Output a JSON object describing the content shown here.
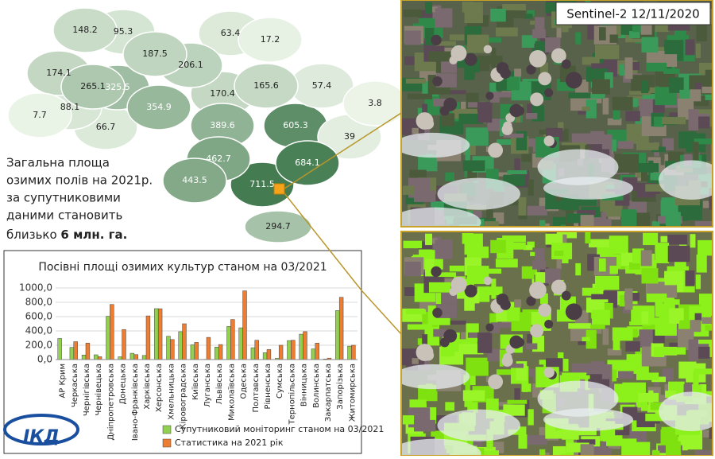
{
  "summary": {
    "lines": [
      "Загальна площа",
      "озимих полів на 2021р.",
      "за супутниковими",
      "даними становить"
    ],
    "last_line": "близько",
    "emphasis": "6 млн. га."
  },
  "image_caption": "Sentinel-2 12/11/2020",
  "logo": "ІКД",
  "chart_data": {
    "type": "bar",
    "title": "Посівні площі озимих культур станом на 03/2021",
    "categories": [
      "АР Крим",
      "Черкаська",
      "Чернігівська",
      "Чернівецька",
      "Дніпропетровська",
      "Донецька",
      "Івано-Франківська",
      "Харківська",
      "Херсонська",
      "Хмельницька",
      "Кіровоградська",
      "Київська",
      "Луганська",
      "Львівська",
      "Миколаївська",
      "Одеська",
      "Полтавська",
      "Рівненська",
      "Сумська",
      "Тернопільська",
      "Вінницька",
      "Волинська",
      "Закарпатська",
      "Запорізька",
      "Житомирська"
    ],
    "series": [
      {
        "name": "Супутниковий моніторинг станом на 03/2021",
        "color": "#92d050",
        "values": [
          294.7,
          170.4,
          63.4,
          66.7,
          605.3,
          39,
          88.1,
          57.4,
          711.5,
          325.5,
          389.6,
          206.1,
          3.8,
          174.1,
          462.7,
          443.5,
          165.6,
          95.3,
          17.2,
          265.1,
          354.9,
          148.2,
          7.7,
          684.1,
          187.5
        ]
      },
      {
        "name": "Статистика на 2021 рік",
        "color": "#ed7d31",
        "values": [
          null,
          250,
          230,
          40,
          770,
          420,
          70,
          610,
          710,
          280,
          500,
          240,
          310,
          210,
          560,
          960,
          270,
          140,
          200,
          270,
          390,
          230,
          20,
          870,
          200
        ]
      }
    ],
    "ylim": [
      0,
      1000
    ],
    "yticks": [
      {
        "value": 0,
        "label": "0,0"
      },
      {
        "value": 200,
        "label": "200,0"
      },
      {
        "value": 400,
        "label": "400,0"
      },
      {
        "value": 600,
        "label": "600,0"
      },
      {
        "value": 800,
        "label": "800,0"
      },
      {
        "value": 1000,
        "label": "1000,0"
      }
    ],
    "grid": true
  }
}
